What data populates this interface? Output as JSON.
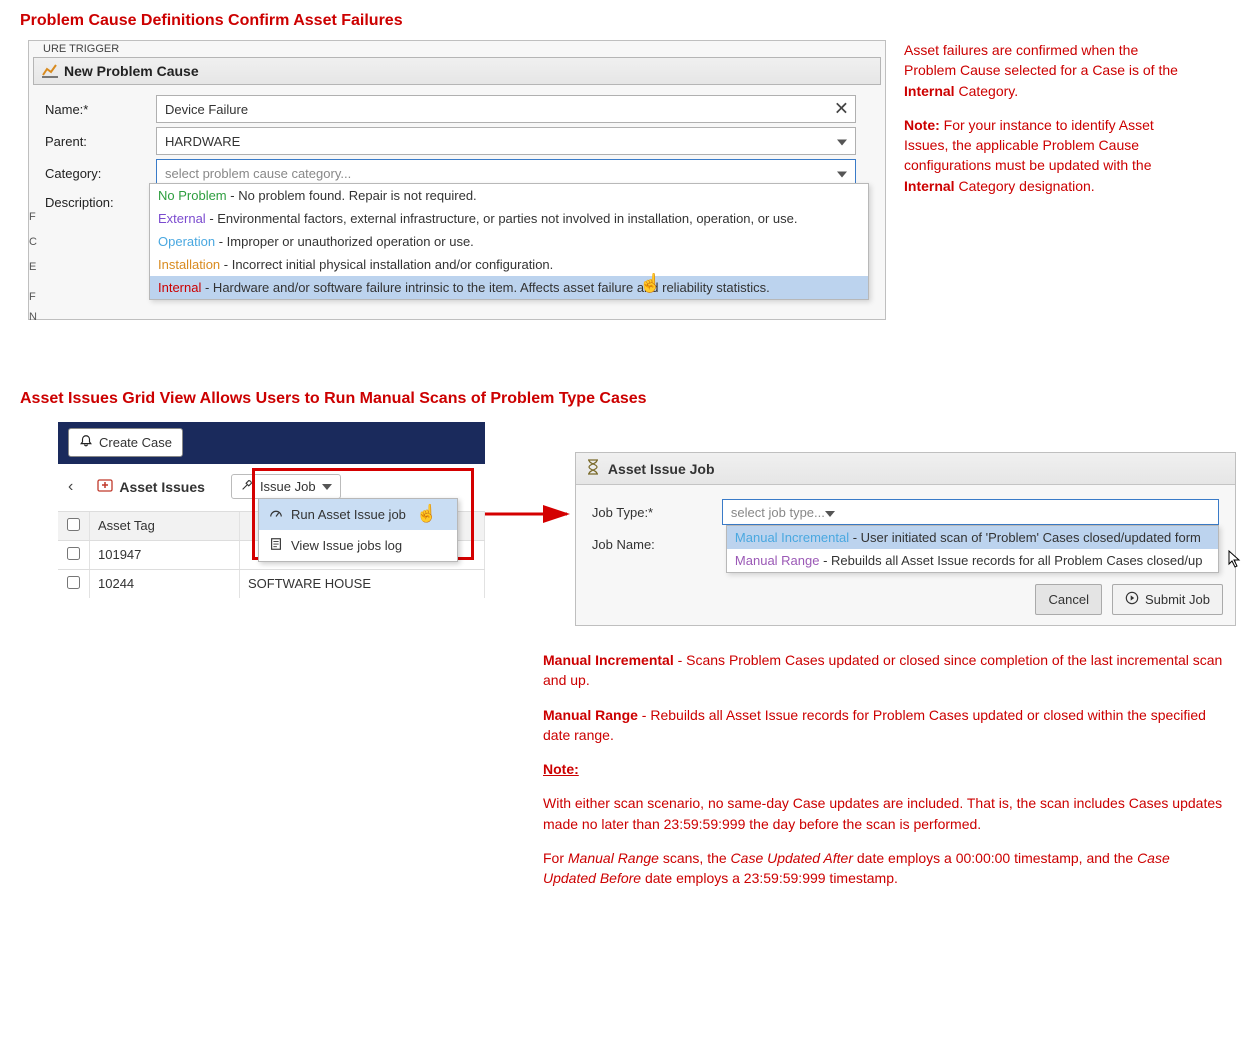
{
  "section1": {
    "heading": "Problem Cause Definitions Confirm Asset Failures",
    "behind_fragment": "URE TRIGGER",
    "win_title": "New Problem Cause",
    "left_labels": [
      "F",
      "C",
      "E",
      "F",
      "N"
    ],
    "form": {
      "name_label": "Name:*",
      "name_value": "Device Failure",
      "parent_label": "Parent:",
      "parent_value": "HARDWARE",
      "category_label": "Category:",
      "category_placeholder": "select problem cause category...",
      "description_label": "Description:"
    },
    "dropdown_options": [
      {
        "key": "No Problem",
        "desc": " - No problem found. Repair is not required.",
        "color": "#2e9e3f"
      },
      {
        "key": "External",
        "desc": " - Environmental factors, external infrastructure, or parties not involved in installation, operation, or use.",
        "color": "#7b4bcf"
      },
      {
        "key": "Operation",
        "desc": " - Improper or unauthorized operation or use.",
        "color": "#4aa8e0"
      },
      {
        "key": "Installation",
        "desc": " - Incorrect initial physical installation and/or configuration.",
        "color": "#d98b1f"
      },
      {
        "key": "Internal",
        "desc": " - Hardware and/or software failure intrinsic to the item. Affects asset failure and reliability statistics.",
        "color": "#cc0000",
        "selected": true
      }
    ],
    "sidebar": {
      "p1a": "Asset failures are confirmed when the Problem Cause selected for a Case is of the ",
      "p1b": "Internal",
      "p1c": " Category.",
      "p2a": "Note:",
      "p2b": " For your instance to identify Asset Issues, the applicable Problem Cause configurations must be updated with the ",
      "p2c": "Internal",
      "p2d": " Category designation."
    }
  },
  "section2": {
    "heading": "Asset Issues Grid View Allows Users to Run Manual Scans of Problem Type Cases",
    "create_button": "Create Case",
    "asset_issues_title": "Asset Issues",
    "issue_job_btn": "Issue Job",
    "menu": {
      "item1": "Run Asset Issue job",
      "item2": "View Issue jobs log"
    },
    "table": {
      "col1": "Asset Tag",
      "rows": [
        {
          "tag": "101947",
          "other": ""
        },
        {
          "tag": "10244",
          "other": "SOFTWARE HOUSE"
        }
      ]
    },
    "jobdlg": {
      "title": "Asset Issue Job",
      "jobtype_label": "Job Type:*",
      "jobtype_ph": "select job type...",
      "jobname_label": "Job Name:",
      "options": [
        {
          "key": "Manual Incremental",
          "desc": " - User initiated scan of 'Problem' Cases closed/updated form",
          "color": "#4aa8e0",
          "selected": true
        },
        {
          "key": "Manual Range",
          "desc": " - Rebuilds all Asset Issue records for all Problem Cases closed/up",
          "color": "#9b59b6"
        }
      ],
      "cancel": "Cancel",
      "submit": "Submit Job"
    },
    "explain": {
      "mi_head": "Manual Incremental",
      "mi_body": " - Scans Problem Cases updated or closed since completion of the last incremental scan and up.",
      "mr_head": "Manual Range",
      "mr_body": " - Rebuilds all Asset Issue records for Problem Cases updated or closed within the specified date range.",
      "note": "Note:",
      "p3": "With either scan scenario, no same-day Case updates are included. That is, the scan includes Cases updates made no later than 23:59:59:999 the day before the scan is performed.",
      "p4a": "For ",
      "p4b": "Manual Range",
      "p4c": " scans, the ",
      "p4d": "Case Updated After",
      "p4e": " date employs a 00:00:00 timestamp, and the ",
      "p4f": "Case Updated Before",
      "p4g": " date employs a 23:59:59:999 timestamp."
    }
  },
  "colors": {
    "red": "#cc0000",
    "navy": "#1a2a5c"
  }
}
